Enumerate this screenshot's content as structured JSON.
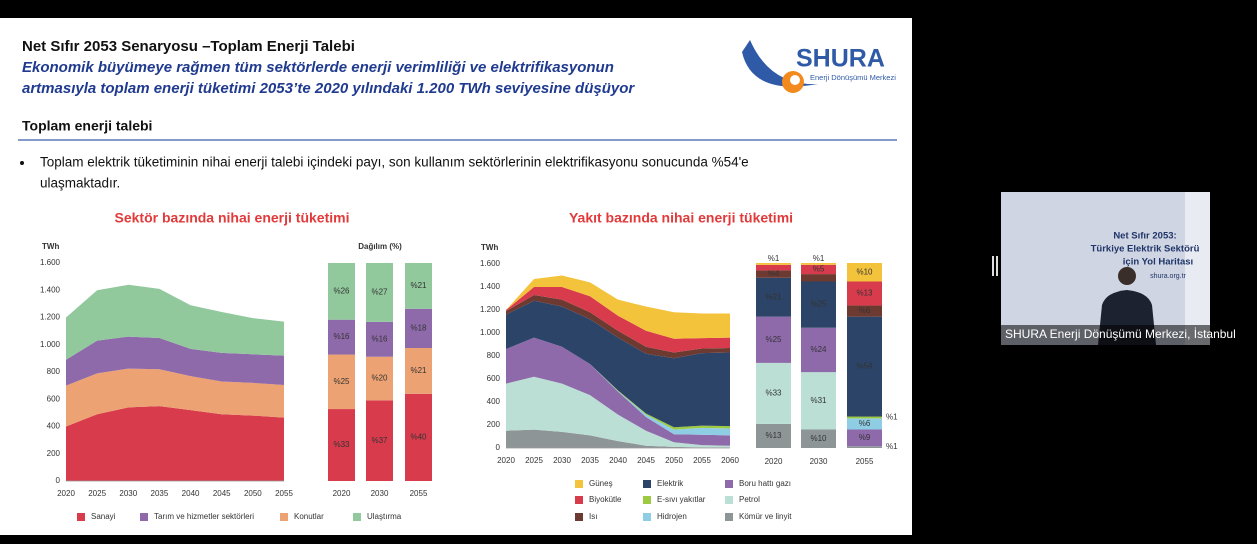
{
  "slide": {
    "title": "Net Sıfır 2053 Senaryosu –Toplam Enerji Talebi",
    "subtitle": [
      "Ekonomik büyümeye rağmen tüm sektörlerde enerji verimliliği ve elektrifikasyonun",
      "artmasıyla toplam enerji tüketimi 2053’te 2020 yılındaki 1.200 TWh seviyesine düşüyor"
    ],
    "logo": {
      "name": "SHURA",
      "tagline": "Enerji Dönüşümü Merkezi"
    },
    "section": "Toplam enerji talebi",
    "bullet": [
      "Toplam elektrik tüketiminin nihai enerji talebi içindeki payı, son kullanım sektörlerinin elektrifikasyonu sonucunda %54'e",
      "ulaşmaktadır."
    ]
  },
  "chart_data": [
    {
      "type": "area",
      "title": "Sektör bazında nihai enerji tüketimi",
      "y_label": "TWh",
      "x": [
        2020,
        2025,
        2030,
        2035,
        2040,
        2045,
        2050,
        2055
      ],
      "xlim": [
        2020,
        2055
      ],
      "xticks": [
        2020,
        2025,
        2030,
        2035,
        2040,
        2045,
        2050,
        2055
      ],
      "ylim": [
        0,
        1600
      ],
      "yticks": [
        0,
        200,
        400,
        600,
        800,
        {
          "value": 1000,
          "label": "1.000"
        },
        {
          "value": 1200,
          "label": "1.200"
        },
        {
          "value": 1400,
          "label": "1.400"
        },
        {
          "value": 1600,
          "label": "1.600"
        }
      ],
      "grid": false,
      "series": [
        {
          "name": "Sanayi",
          "color": "#d83b4c",
          "values": [
            400,
            490,
            540,
            550,
            520,
            490,
            480,
            465
          ]
        },
        {
          "name": "Konutlar",
          "color": "#eca272",
          "values": [
            300,
            300,
            285,
            270,
            250,
            240,
            240,
            240
          ]
        },
        {
          "name": "Tarım ve hizmetler sektörleri",
          "color": "#8f6aab",
          "values": [
            190,
            240,
            235,
            230,
            200,
            210,
            210,
            215
          ]
        },
        {
          "name": "Ulaştırma",
          "color": "#91c89c",
          "values": [
            310,
            370,
            380,
            360,
            320,
            300,
            265,
            250
          ]
        }
      ]
    },
    {
      "type": "bar",
      "title": "Dağılım (%)",
      "categories": [
        "2020",
        "2030",
        "2055"
      ],
      "series": [
        {
          "color": "#d83b4c",
          "values": [
            33,
            37,
            40
          ],
          "value_labels": [
            "%33",
            "%37",
            "%40"
          ]
        },
        {
          "color": "#eca272",
          "values": [
            25,
            20,
            21
          ],
          "value_labels": [
            "%25",
            "%20",
            "%21"
          ]
        },
        {
          "color": "#8f6aab",
          "values": [
            16,
            16,
            18
          ],
          "value_labels": [
            "%16",
            "%16",
            "%18"
          ]
        },
        {
          "color": "#91c89c",
          "values": [
            26,
            27,
            21
          ],
          "value_labels": [
            "%26",
            "%27",
            "%21"
          ]
        }
      ]
    },
    {
      "type": "area",
      "title": "Yakıt bazında nihai enerji tüketimi",
      "y_label": "TWh",
      "x": [
        2020,
        2025,
        2030,
        2035,
        2040,
        2045,
        2050,
        2055,
        2060
      ],
      "xlim": [
        2020,
        2060
      ],
      "xticks": [
        2020,
        2025,
        2030,
        2035,
        2040,
        2045,
        2050,
        2055,
        2060
      ],
      "ylim": [
        0,
        1600
      ],
      "yticks": [
        0,
        200,
        400,
        600,
        800,
        {
          "value": 1000,
          "label": "1.000"
        },
        {
          "value": 1200,
          "label": "1.200"
        },
        {
          "value": 1400,
          "label": "1.400"
        },
        {
          "value": 1600,
          "label": "1.600"
        }
      ],
      "grid": false,
      "series": [
        {
          "name": "Kömür ve linyit",
          "color": "#8e9597",
          "values": [
            150,
            160,
            140,
            110,
            60,
            20,
            10,
            5,
            5
          ]
        },
        {
          "name": "Petrol",
          "color": "#bbdfd4",
          "values": [
            410,
            460,
            420,
            350,
            230,
            130,
            40,
            20,
            15
          ]
        },
        {
          "name": "Boru hattı gazı",
          "color": "#8f6aab",
          "values": [
            300,
            340,
            320,
            270,
            200,
            120,
            70,
            90,
            90
          ]
        },
        {
          "name": "Hidrojen",
          "color": "#8fcde5",
          "values": [
            0,
            0,
            0,
            0,
            5,
            20,
            40,
            60,
            60
          ]
        },
        {
          "name": "E-sıvı yakıtlar",
          "color": "#9dca40",
          "values": [
            0,
            0,
            0,
            0,
            5,
            10,
            20,
            20,
            20
          ]
        },
        {
          "name": "Elektrik",
          "color": "#2c4467",
          "values": [
            300,
            320,
            350,
            390,
            460,
            520,
            600,
            630,
            640
          ]
        },
        {
          "name": "Isı",
          "color": "#6d3a31",
          "values": [
            30,
            50,
            60,
            60,
            60,
            60,
            50,
            40,
            40
          ]
        },
        {
          "name": "Biyokütle",
          "color": "#d83b4c",
          "values": [
            10,
            70,
            110,
            140,
            130,
            140,
            120,
            90,
            90
          ]
        },
        {
          "name": "Güneş",
          "color": "#f4c33c",
          "values": [
            0,
            70,
            100,
            120,
            140,
            210,
            230,
            215,
            210
          ]
        }
      ]
    },
    {
      "type": "bar",
      "categories": [
        "2020",
        "2030",
        "2055"
      ],
      "series": [
        {
          "color": "#8e9597",
          "values": [
            13,
            10,
            1
          ],
          "value_labels": [
            "%13",
            "%10",
            "%1"
          ]
        },
        {
          "color": "#bbdfd4",
          "values": [
            33,
            31,
            0
          ],
          "value_labels": [
            "%33",
            "%31",
            null
          ]
        },
        {
          "color": "#8f6aab",
          "values": [
            25,
            24,
            9
          ],
          "value_labels": [
            "%25",
            "%24",
            "%9"
          ]
        },
        {
          "color": "#8fcde5",
          "values": [
            0,
            0,
            6
          ],
          "value_labels": [
            null,
            null,
            "%6"
          ]
        },
        {
          "color": "#9dca40",
          "values": [
            0,
            0,
            1
          ],
          "value_labels": [
            null,
            null,
            "%1"
          ]
        },
        {
          "color": "#2c4467",
          "values": [
            21,
            25,
            54
          ],
          "value_labels": [
            "%21",
            "%25",
            "%54"
          ]
        },
        {
          "color": "#6d3a31",
          "values": [
            4,
            4,
            6
          ],
          "value_labels": [
            "%4",
            null,
            "%6"
          ]
        },
        {
          "color": "#d83b4c",
          "values": [
            3,
            5,
            13
          ],
          "value_labels": [
            null,
            "%5",
            "%13"
          ]
        },
        {
          "color": "#f4c33c",
          "values": [
            1,
            1,
            10
          ],
          "value_labels": [
            "%1",
            "%1",
            "%10"
          ]
        }
      ]
    }
  ],
  "video": {
    "slide_lines": [
      "Net Sıfır 2053:",
      "Türkiye Elektrik Sektörü",
      "için Yol Haritası"
    ],
    "url": "shura.org.tr",
    "caption": "SHURA Enerji Dönüşümü Merkezi, İstanbul"
  }
}
